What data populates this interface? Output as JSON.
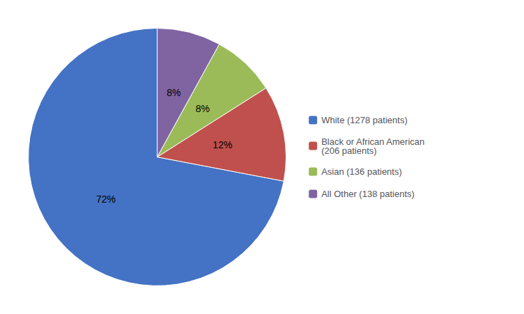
{
  "chart_data": {
    "type": "pie",
    "categories": [
      "White (1278 patients)",
      "Black or African American\n(206 patients)",
      "Asian (136 patients)",
      "All Other (138 patients)"
    ],
    "values": [
      72,
      12,
      8,
      8
    ],
    "value_labels": [
      "72%",
      "12%",
      "8%",
      "8%"
    ],
    "colors": [
      "#4472C4",
      "#C0504D",
      "#9BBB59",
      "#8064A2"
    ],
    "data_labels": true,
    "legend": "right"
  }
}
